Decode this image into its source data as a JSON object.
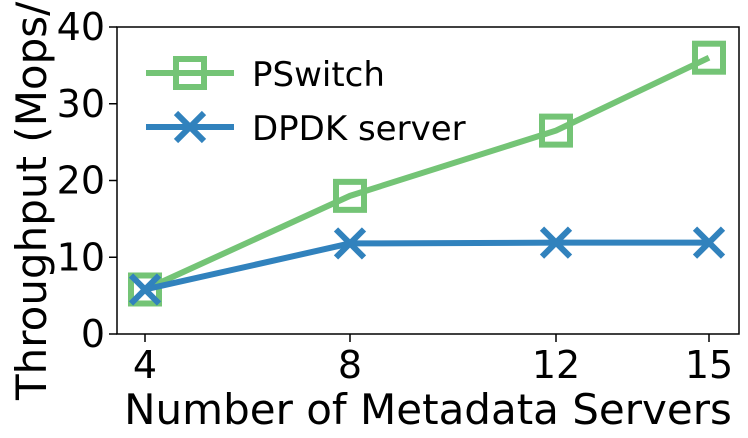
{
  "chart_data": {
    "type": "line",
    "xlabel": "Number of Metadata Servers",
    "ylabel": "Throughput (Mops/s)",
    "x": [
      4,
      8,
      12,
      15
    ],
    "xticks": [
      "4",
      "8",
      "12",
      "15"
    ],
    "yticks": [
      "0",
      "10",
      "20",
      "30",
      "40"
    ],
    "ylim": [
      0,
      40
    ],
    "grid": false,
    "legend_position": "top-left",
    "series": [
      {
        "name": "PSwitch",
        "values": [
          5.8,
          18.0,
          26.5,
          36.0
        ],
        "color": "#74c476",
        "marker": "square"
      },
      {
        "name": "DPDK server",
        "values": [
          5.8,
          11.8,
          11.9,
          11.9
        ],
        "color": "#3182bd",
        "marker": "x"
      }
    ]
  }
}
